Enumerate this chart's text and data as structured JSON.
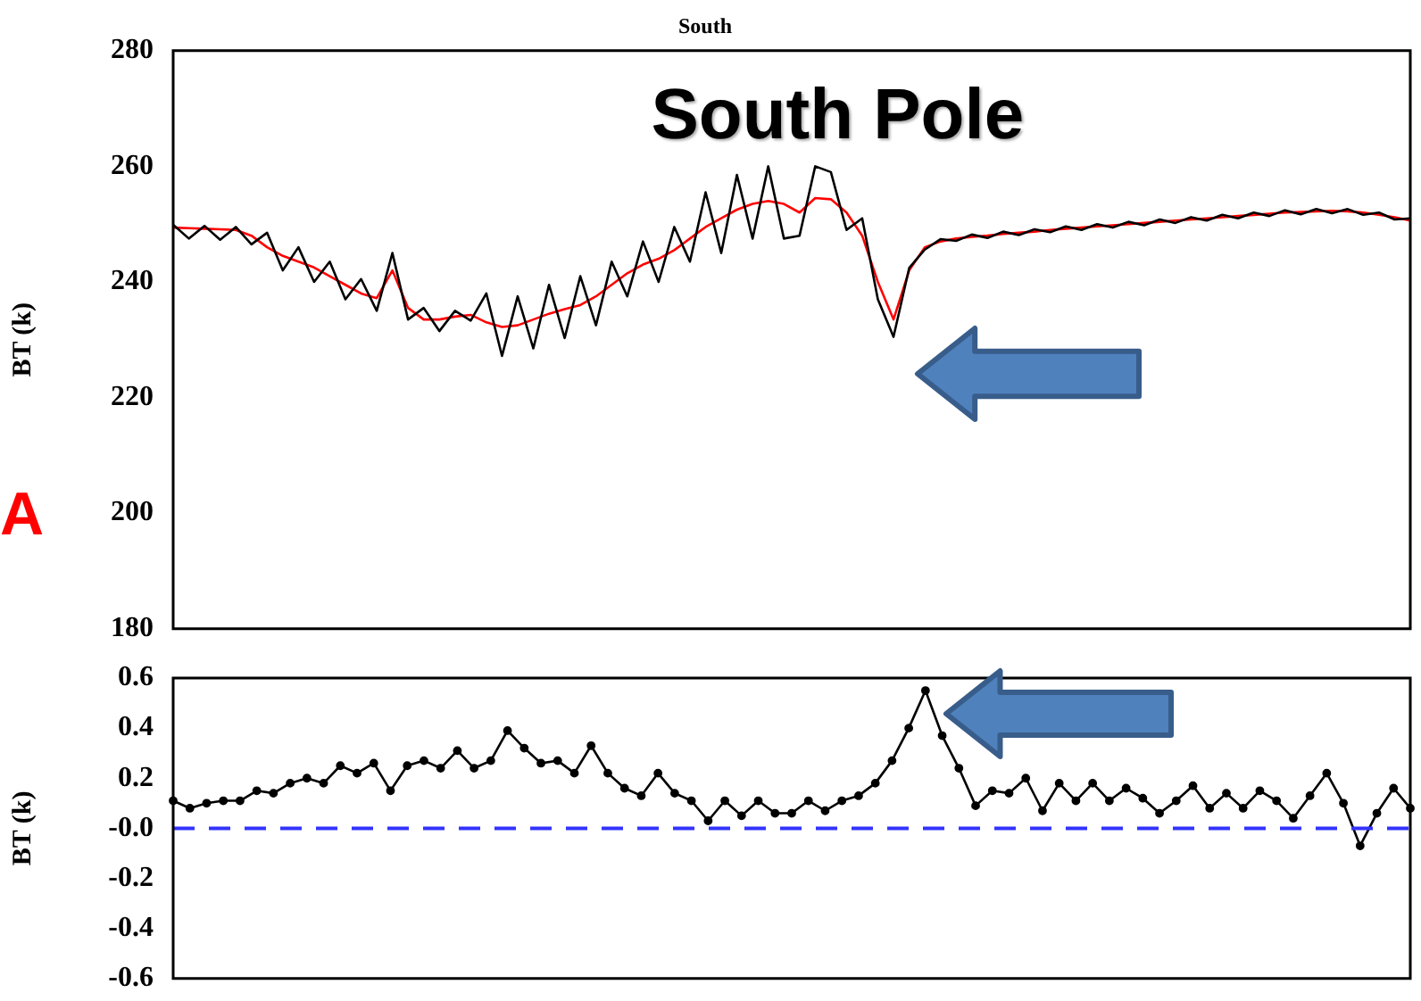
{
  "chart_data": [
    {
      "type": "line",
      "title": "South",
      "ylabel": "BT (k)",
      "annotations": [
        "South Pole",
        "A"
      ],
      "categories": [
        null,
        null,
        null,
        null,
        null,
        null,
        null,
        null,
        null,
        null,
        null,
        null,
        null,
        null,
        null,
        null,
        null,
        null,
        null,
        null,
        null,
        null,
        null,
        null,
        null,
        null,
        null,
        null,
        null,
        null,
        null,
        null,
        null,
        null,
        null,
        null,
        null,
        null,
        null,
        null,
        null,
        null,
        null,
        null,
        null,
        null,
        null,
        null,
        null,
        null,
        null,
        null,
        null,
        null,
        null,
        null,
        null,
        null,
        null,
        null,
        null,
        null,
        null,
        null,
        null,
        null,
        null,
        null,
        null,
        null,
        null,
        null,
        null,
        null,
        null,
        null,
        null,
        null,
        null,
        null
      ],
      "series": [
        {
          "color": "#000000",
          "values": [
            249.9,
            247.5,
            249.7,
            247.3,
            249.5,
            246.5,
            248.5,
            242,
            246,
            240,
            243.5,
            237,
            240.5,
            235,
            245,
            233.5,
            235.5,
            231.5,
            235,
            233.3,
            238,
            227.2,
            237.5,
            228.5,
            239.5,
            230.3,
            241,
            232.5,
            243.5,
            237.5,
            247,
            240,
            249.5,
            243.5,
            255.5,
            245,
            258.5,
            247.5,
            260,
            247.5,
            248,
            260,
            259,
            249,
            251,
            237,
            230.5,
            242.4,
            245.6,
            247.4,
            247.1,
            248.2,
            247.6,
            248.7,
            248.1,
            249.1,
            248.6,
            249.6,
            249,
            250,
            249.4,
            250.4,
            249.8,
            250.8,
            250.2,
            251.2,
            250.6,
            251.6,
            251,
            252,
            251.4,
            252.4,
            251.7,
            252.6,
            251.9,
            252.6,
            251.6,
            252,
            250.8,
            251
          ]
        },
        {
          "color": "#ff0000",
          "values": [
            249.4,
            249.3,
            249.2,
            249.1,
            249,
            248,
            246,
            244.5,
            243.5,
            242.5,
            241,
            239.5,
            238,
            237.2,
            242,
            235.5,
            233.5,
            233.5,
            234,
            234.3,
            233,
            232.2,
            232.5,
            233.5,
            234.5,
            235.3,
            236,
            237.5,
            239.5,
            241.5,
            243,
            244,
            245.5,
            247.5,
            249.5,
            251,
            252.5,
            253.5,
            254,
            253.5,
            252,
            254.5,
            254.3,
            252,
            248,
            240,
            233.5,
            242,
            246,
            247,
            247.5,
            247.8,
            248,
            248.3,
            248.5,
            248.7,
            249,
            249.2,
            249.4,
            249.6,
            249.8,
            250,
            250.2,
            250.4,
            250.6,
            250.8,
            251,
            251.2,
            251.4,
            251.6,
            251.8,
            252,
            252.1,
            252.2,
            252.3,
            252.2,
            252,
            251.6,
            251.2,
            250.6
          ]
        }
      ],
      "ylim": [
        180,
        280
      ],
      "yticks": [
        180,
        200,
        220,
        240,
        260,
        280
      ],
      "tick_labels": "y"
    },
    {
      "type": "line",
      "ylabel": "BT (k)",
      "marker": "circle",
      "categories": [
        null,
        null,
        null,
        null,
        null,
        null,
        null,
        null,
        null,
        null,
        null,
        null,
        null,
        null,
        null,
        null,
        null,
        null,
        null,
        null,
        null,
        null,
        null,
        null,
        null,
        null,
        null,
        null,
        null,
        null,
        null,
        null,
        null,
        null,
        null,
        null,
        null,
        null,
        null,
        null,
        null,
        null,
        null,
        null,
        null,
        null,
        null,
        null,
        null,
        null,
        null,
        null,
        null,
        null,
        null,
        null,
        null,
        null,
        null,
        null,
        null,
        null,
        null,
        null,
        null,
        null,
        null,
        null,
        null,
        null,
        null,
        null,
        null,
        null,
        null
      ],
      "series": [
        {
          "color": "#000000",
          "values": [
            0.11,
            0.08,
            0.1,
            0.11,
            0.11,
            0.15,
            0.14,
            0.18,
            0.2,
            0.18,
            0.25,
            0.22,
            0.26,
            0.15,
            0.25,
            0.27,
            0.24,
            0.31,
            0.24,
            0.27,
            0.39,
            0.32,
            0.26,
            0.27,
            0.22,
            0.33,
            0.22,
            0.16,
            0.13,
            0.22,
            0.14,
            0.11,
            0.03,
            0.11,
            0.05,
            0.11,
            0.06,
            0.06,
            0.11,
            0.07,
            0.11,
            0.13,
            0.18,
            0.27,
            0.4,
            0.55,
            0.37,
            0.24,
            0.09,
            0.15,
            0.14,
            0.2,
            0.07,
            0.18,
            0.11,
            0.18,
            0.11,
            0.16,
            0.12,
            0.06,
            0.11,
            0.17,
            0.08,
            0.14,
            0.08,
            0.15,
            0.11,
            0.04,
            0.13,
            0.22,
            0.1,
            -0.07,
            0.06,
            0.16,
            0.08
          ]
        }
      ],
      "ylim": [
        -0.6,
        0.6
      ],
      "yticks": [
        -0.6,
        -0.4,
        -0.2,
        {
          "value": 0,
          "label": "-0.0"
        },
        0.2,
        0.4,
        0.6
      ],
      "tick_labels": "y",
      "ref_lines": [
        {
          "axis": "y",
          "value": 0,
          "color": "#3333ff",
          "line_style": "dashed"
        }
      ]
    }
  ]
}
